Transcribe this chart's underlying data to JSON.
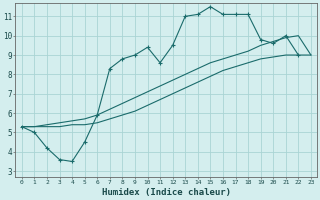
{
  "xlabel": "Humidex (Indice chaleur)",
  "background_color": "#d4eeee",
  "grid_color": "#aad4d4",
  "line_color": "#1a6b6b",
  "xlim": [
    -0.5,
    23.5
  ],
  "ylim": [
    2.7,
    11.7
  ],
  "x_ticks": [
    0,
    1,
    2,
    3,
    4,
    5,
    6,
    7,
    8,
    9,
    10,
    11,
    12,
    13,
    14,
    15,
    16,
    17,
    18,
    19,
    20,
    21,
    22,
    23
  ],
  "y_ticks": [
    3,
    4,
    5,
    6,
    7,
    8,
    9,
    10,
    11
  ],
  "series1_x": [
    0,
    1,
    2,
    3,
    4,
    5,
    6,
    7,
    8,
    9,
    10,
    11,
    12,
    13,
    14,
    15,
    16,
    17,
    18,
    19,
    20,
    21,
    22
  ],
  "series1_y": [
    5.3,
    5.0,
    4.2,
    3.6,
    3.5,
    4.5,
    5.9,
    8.3,
    8.8,
    9.0,
    9.4,
    8.6,
    9.5,
    11.0,
    11.1,
    11.5,
    11.1,
    11.1,
    11.1,
    9.8,
    9.6,
    10.0,
    9.0
  ],
  "series2_x": [
    0,
    1,
    2,
    3,
    4,
    5,
    6,
    7,
    8,
    9,
    10,
    11,
    12,
    13,
    14,
    15,
    16,
    17,
    18,
    19,
    20,
    21,
    22,
    23
  ],
  "series2_y": [
    5.3,
    5.3,
    5.4,
    5.5,
    5.6,
    5.7,
    5.9,
    6.2,
    6.5,
    6.8,
    7.1,
    7.4,
    7.7,
    8.0,
    8.3,
    8.6,
    8.8,
    9.0,
    9.2,
    9.5,
    9.7,
    9.9,
    10.0,
    9.0
  ],
  "series3_x": [
    0,
    1,
    2,
    3,
    4,
    5,
    6,
    7,
    8,
    9,
    10,
    11,
    12,
    13,
    14,
    15,
    16,
    17,
    18,
    19,
    20,
    21,
    22,
    23
  ],
  "series3_y": [
    5.3,
    5.3,
    5.3,
    5.3,
    5.4,
    5.4,
    5.5,
    5.7,
    5.9,
    6.1,
    6.4,
    6.7,
    7.0,
    7.3,
    7.6,
    7.9,
    8.2,
    8.4,
    8.6,
    8.8,
    8.9,
    9.0,
    9.0,
    9.0
  ]
}
